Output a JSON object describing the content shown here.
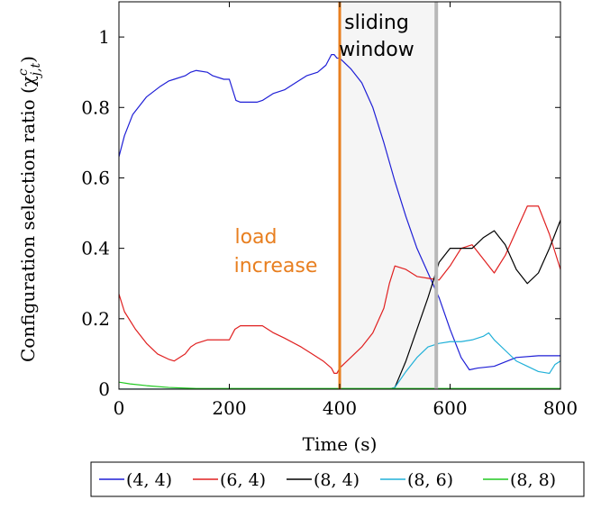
{
  "chart_data": {
    "type": "line",
    "xlabel": "Time (s)",
    "ylabel": "Configuration selection ratio (χ",
    "ylabel_sup": "c",
    "ylabel_sub": "j,t",
    "ylabel_close": ")",
    "xlim": [
      0,
      800
    ],
    "ylim": [
      0,
      1.1
    ],
    "x_ticks": [
      0,
      200,
      400,
      600,
      800
    ],
    "x_tick_labels": [
      "0",
      "200",
      "400",
      "600",
      "800"
    ],
    "y_ticks": [
      0,
      0.2,
      0.4,
      0.6,
      0.8,
      1
    ],
    "y_tick_labels": [
      "0",
      "0.2",
      "0.4",
      "0.6",
      "0.8",
      "1"
    ],
    "grid": false,
    "legend_position": "bottom",
    "annotations": {
      "load_increase": {
        "x": 400,
        "lines": [
          "load",
          "increase"
        ],
        "color": "#e87f20"
      },
      "sliding_window": {
        "x_start": 400,
        "x_end": 575,
        "lines": [
          "sliding",
          "window"
        ],
        "band_color": "#f5f5f5",
        "end_line_color": "#b8b8b8"
      }
    },
    "series": [
      {
        "name": "(4, 4)",
        "color": "#1f1fd6",
        "x": [
          0,
          10,
          25,
          50,
          75,
          90,
          100,
          120,
          130,
          140,
          160,
          170,
          190,
          200,
          212,
          220,
          250,
          260,
          280,
          300,
          320,
          340,
          360,
          375,
          385,
          390,
          395,
          400,
          420,
          440,
          460,
          480,
          500,
          520,
          540,
          560,
          580,
          600,
          620,
          635,
          650,
          680,
          720,
          760,
          800
        ],
        "y": [
          0.66,
          0.72,
          0.78,
          0.83,
          0.86,
          0.875,
          0.88,
          0.89,
          0.9,
          0.905,
          0.9,
          0.89,
          0.88,
          0.88,
          0.82,
          0.815,
          0.815,
          0.82,
          0.84,
          0.85,
          0.87,
          0.89,
          0.9,
          0.92,
          0.95,
          0.95,
          0.94,
          0.94,
          0.91,
          0.87,
          0.8,
          0.7,
          0.59,
          0.49,
          0.4,
          0.33,
          0.26,
          0.17,
          0.09,
          0.055,
          0.06,
          0.065,
          0.09,
          0.095,
          0.095
        ]
      },
      {
        "name": "(6, 4)",
        "color": "#e02020",
        "x": [
          0,
          10,
          30,
          50,
          70,
          90,
          100,
          120,
          130,
          140,
          160,
          170,
          200,
          210,
          220,
          260,
          280,
          300,
          330,
          350,
          370,
          385,
          390,
          395,
          400,
          420,
          440,
          460,
          480,
          490,
          500,
          520,
          540,
          560,
          580,
          600,
          620,
          640,
          660,
          680,
          700,
          720,
          740,
          760,
          780,
          800
        ],
        "y": [
          0.27,
          0.22,
          0.17,
          0.13,
          0.1,
          0.085,
          0.08,
          0.1,
          0.12,
          0.13,
          0.14,
          0.14,
          0.14,
          0.17,
          0.18,
          0.18,
          0.16,
          0.145,
          0.12,
          0.1,
          0.08,
          0.06,
          0.045,
          0.045,
          0.06,
          0.09,
          0.12,
          0.16,
          0.23,
          0.3,
          0.35,
          0.34,
          0.32,
          0.315,
          0.31,
          0.35,
          0.4,
          0.41,
          0.37,
          0.33,
          0.38,
          0.45,
          0.52,
          0.52,
          0.44,
          0.34
        ]
      },
      {
        "name": "(8, 4)",
        "color": "#000000",
        "x": [
          0,
          480,
          490,
          500,
          520,
          540,
          560,
          580,
          600,
          620,
          640,
          660,
          680,
          700,
          720,
          740,
          760,
          780,
          800
        ],
        "y": [
          0,
          0,
          0,
          0.005,
          0.08,
          0.17,
          0.26,
          0.36,
          0.4,
          0.4,
          0.4,
          0.43,
          0.45,
          0.41,
          0.34,
          0.3,
          0.33,
          0.4,
          0.48
        ]
      },
      {
        "name": "(8, 6)",
        "color": "#20b0d8",
        "x": [
          0,
          480,
          490,
          500,
          520,
          540,
          560,
          580,
          600,
          620,
          640,
          660,
          670,
          680,
          700,
          720,
          740,
          760,
          780,
          790,
          800
        ],
        "y": [
          0,
          0,
          0,
          0.005,
          0.05,
          0.09,
          0.12,
          0.13,
          0.135,
          0.135,
          0.14,
          0.15,
          0.16,
          0.14,
          0.11,
          0.08,
          0.065,
          0.05,
          0.045,
          0.07,
          0.08
        ]
      },
      {
        "name": "(8, 8)",
        "color": "#20c820",
        "x": [
          0,
          20,
          50,
          90,
          140,
          800
        ],
        "y": [
          0.02,
          0.015,
          0.01,
          0.005,
          0.002,
          0.002
        ]
      }
    ]
  }
}
